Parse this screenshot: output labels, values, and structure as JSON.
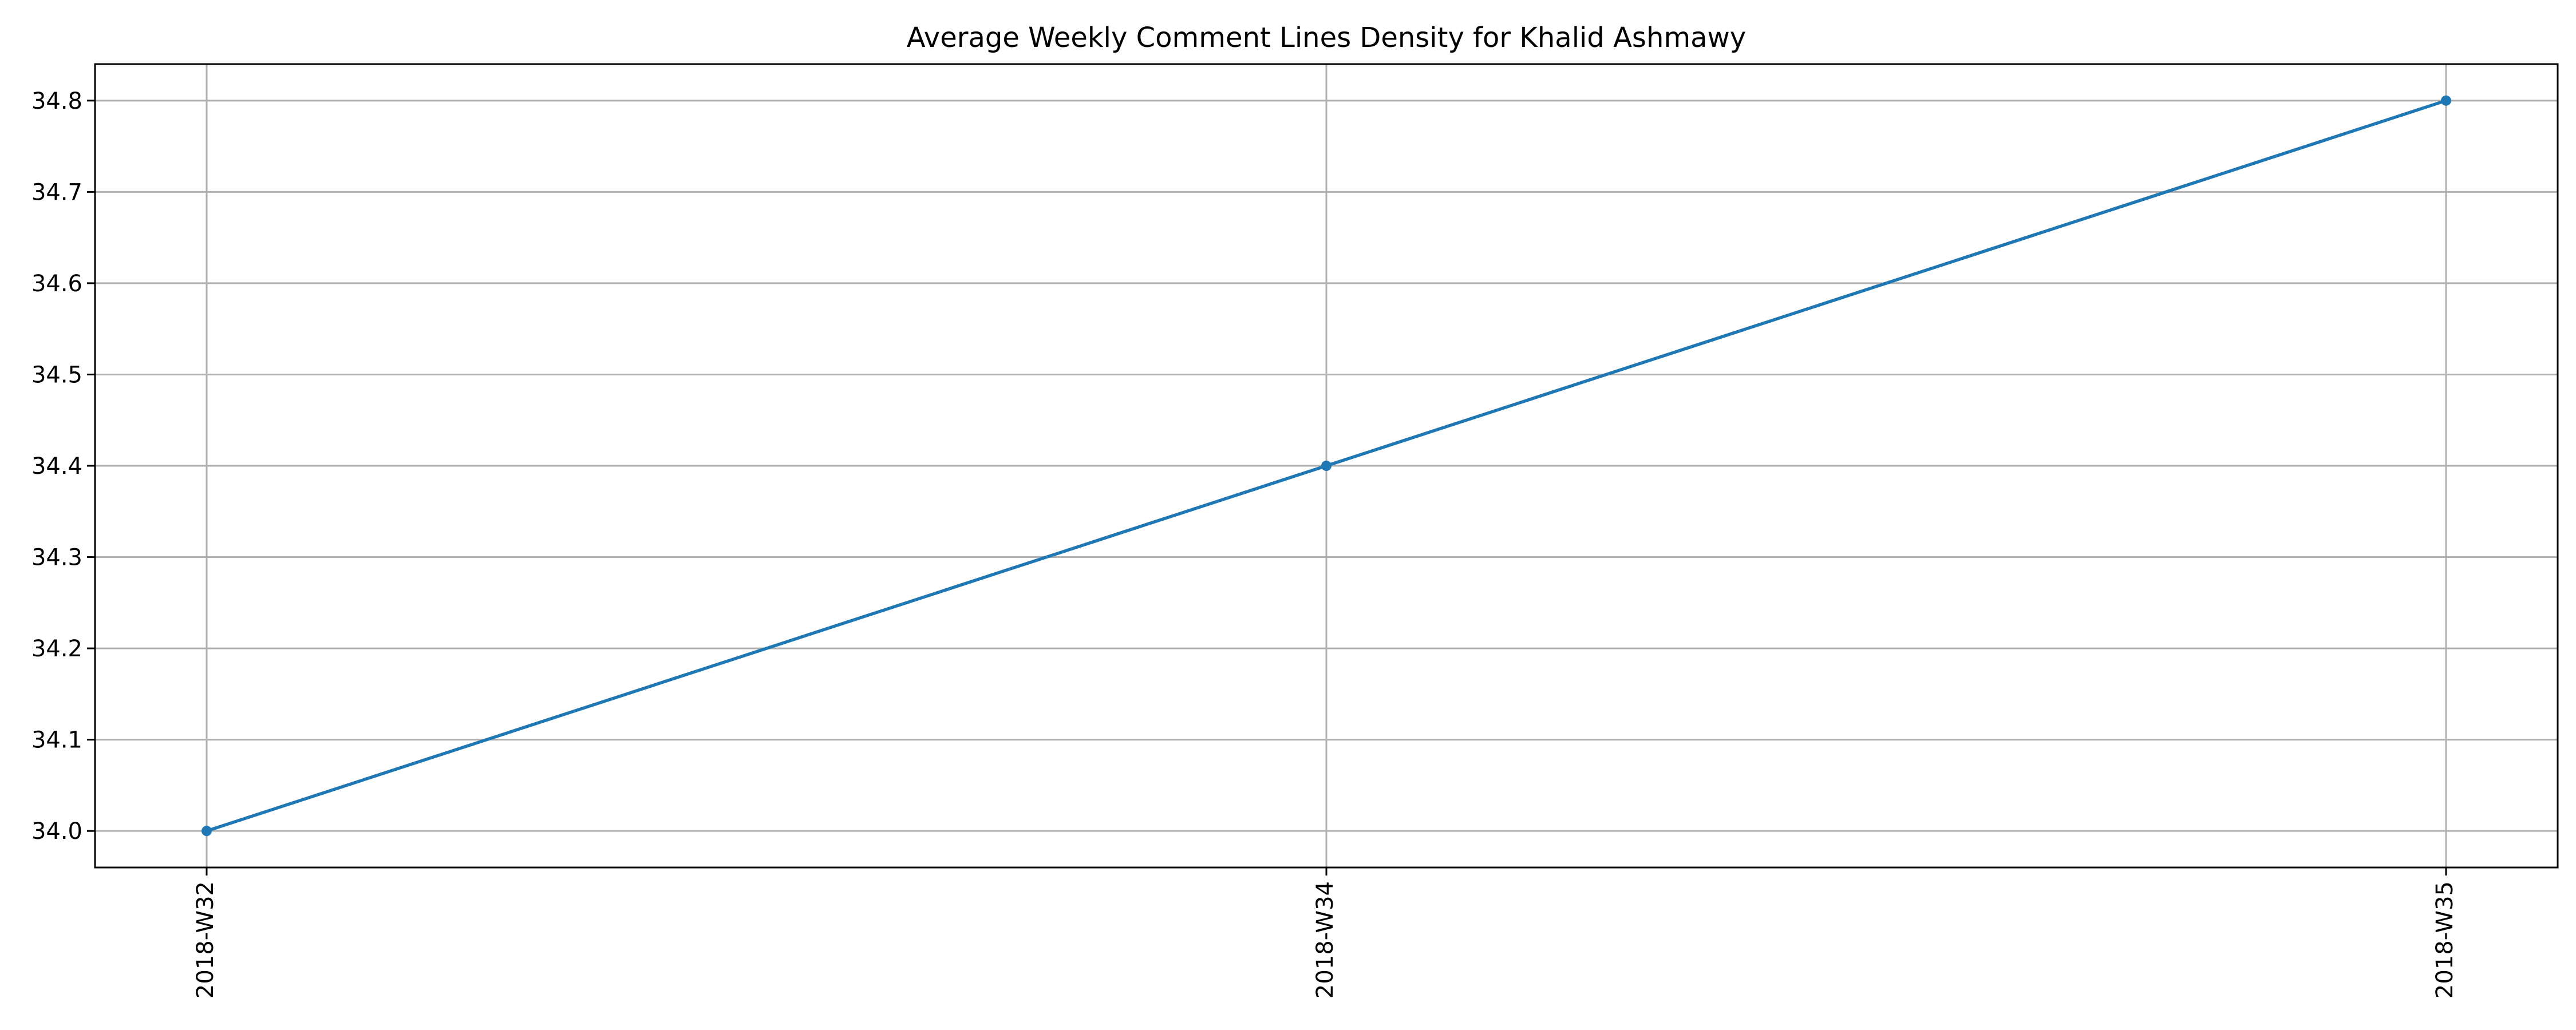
{
  "chart_data": {
    "type": "line",
    "title": "Average Weekly Comment Lines Density for Khalid Ashmawy",
    "xlabel": "",
    "ylabel": "",
    "categories": [
      "2018-W32",
      "2018-W34",
      "2018-W35"
    ],
    "series": [
      {
        "values": [
          34.0,
          34.4,
          34.8
        ],
        "color": "#1f77b4",
        "marker": "circle"
      }
    ],
    "ylim": [
      33.96,
      34.84
    ],
    "yticks": [
      34.0,
      34.1,
      34.2,
      34.3,
      34.4,
      34.5,
      34.6,
      34.7,
      34.8
    ],
    "grid": true,
    "legend": "none"
  }
}
